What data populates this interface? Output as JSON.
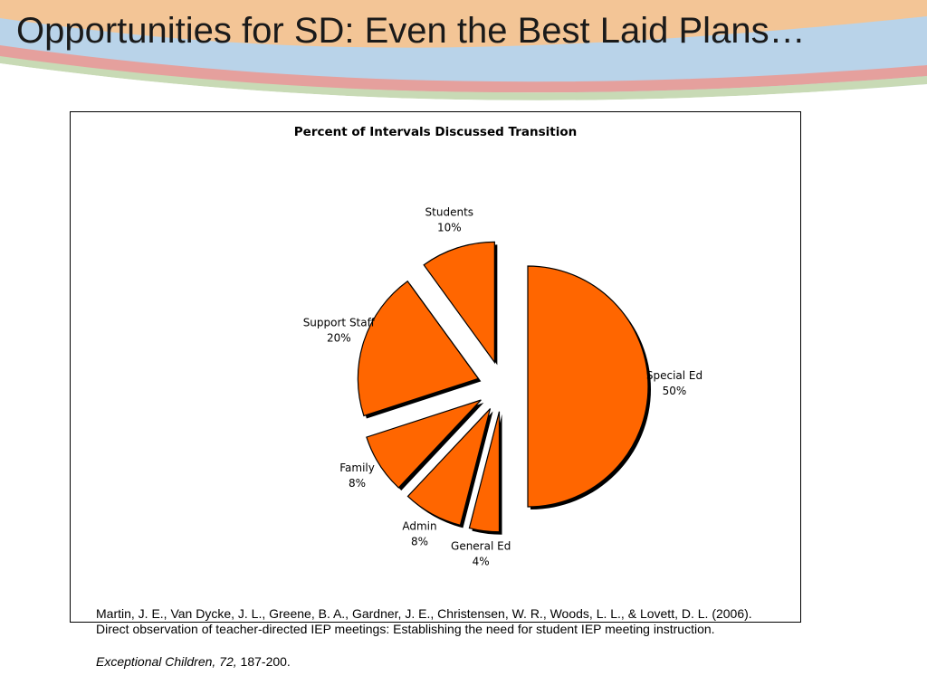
{
  "slide": {
    "title": "Opportunities for SD: Even the Best Laid Plans…"
  },
  "chart_data": {
    "type": "pie",
    "title": "Percent of Intervals Discussed Transition",
    "exploded": true,
    "color": "#ff6600",
    "edge_color": "#000000",
    "slices": [
      {
        "label": "Special Ed",
        "value": 50,
        "value_label": "50%"
      },
      {
        "label": "General Ed",
        "value": 4,
        "value_label": "4%"
      },
      {
        "label": "Admin",
        "value": 8,
        "value_label": "8%"
      },
      {
        "label": "Family",
        "value": 8,
        "value_label": "8%"
      },
      {
        "label": "Support Staff",
        "value": 20,
        "value_label": "20%"
      },
      {
        "label": "Students",
        "value": 10,
        "value_label": "10%"
      }
    ]
  },
  "citation": {
    "authors": "Martin, J. E., Van Dycke, J. L., Greene, B. A., Gardner, J. E., Christensen, W. R., Woods, L. L., & Lovett, D. L. (2006).",
    "article": "Direct observation of teacher-directed IEP meetings: Establishing the need for student IEP meeting instruction.",
    "journal": "Exceptional Children, 72,",
    "pages": " 187-200."
  },
  "colors": {
    "band_orange": "#f5c79a",
    "band_blue": "#b9d3e9",
    "band_pink": "#e8a3a0",
    "band_green": "#c9d9b7"
  }
}
